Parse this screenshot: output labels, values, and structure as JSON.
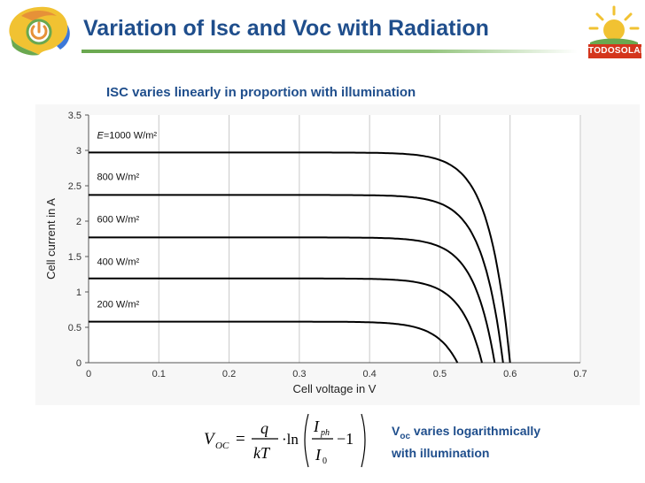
{
  "page": {
    "title": "Variation of Isc and Voc with Radiation",
    "subtitle": "ISC varies linearly in proportion with illumination",
    "brand": "TODOSOLAR",
    "note": {
      "v": "V",
      "sub": "oc",
      "line1_rest": " varies logarithmically",
      "line2": "with illumination"
    },
    "formula": {
      "lhs": "V",
      "lhs_sub": "OC",
      "equals": "=",
      "num": "q",
      "den": "kT",
      "dot_ln": "·ln",
      "i_num": "I",
      "i_num_sub": "ph",
      "i_den": "I",
      "i_den_sub": "0",
      "minus_one": "−1"
    }
  },
  "colors": {
    "title": "#1f4e8c",
    "accent_green": "#6aa84f",
    "brand_red": "#d4351c",
    "sun_yellow": "#f1c232",
    "curve": "#000000"
  },
  "chart_data": {
    "type": "line",
    "xlabel": "Cell voltage in V",
    "ylabel": "Cell current in A",
    "xlim": [
      0,
      0.7
    ],
    "ylim": [
      0,
      3.5
    ],
    "x_ticks": [
      "0",
      "0.1",
      "0.2",
      "0.3",
      "0.4",
      "0.5",
      "0.6",
      "0.7"
    ],
    "y_ticks": [
      "0",
      "0.5",
      "1",
      "1.5",
      "2",
      "2.5",
      "3",
      "3.5"
    ],
    "grid": "vertical",
    "series": [
      {
        "name": "E=1000 W/m²",
        "label_prefix": "E",
        "label_rest": "=1000 W/m²",
        "isc": 2.97,
        "voc": 0.6,
        "label_y": 3.22
      },
      {
        "name": "800 W/m²",
        "label_prefix": "",
        "label_rest": "800 W/m²",
        "isc": 2.37,
        "voc": 0.59,
        "label_y": 2.63
      },
      {
        "name": "600 W/m²",
        "label_prefix": "",
        "label_rest": "600 W/m²",
        "isc": 1.77,
        "voc": 0.578,
        "label_y": 2.03
      },
      {
        "name": "400 W/m²",
        "label_prefix": "",
        "label_rest": "400 W/m²",
        "isc": 1.19,
        "voc": 0.56,
        "label_y": 1.43
      },
      {
        "name": "200 W/m²",
        "label_prefix": "",
        "label_rest": "200 W/m²",
        "isc": 0.58,
        "voc": 0.525,
        "label_y": 0.83
      }
    ]
  }
}
